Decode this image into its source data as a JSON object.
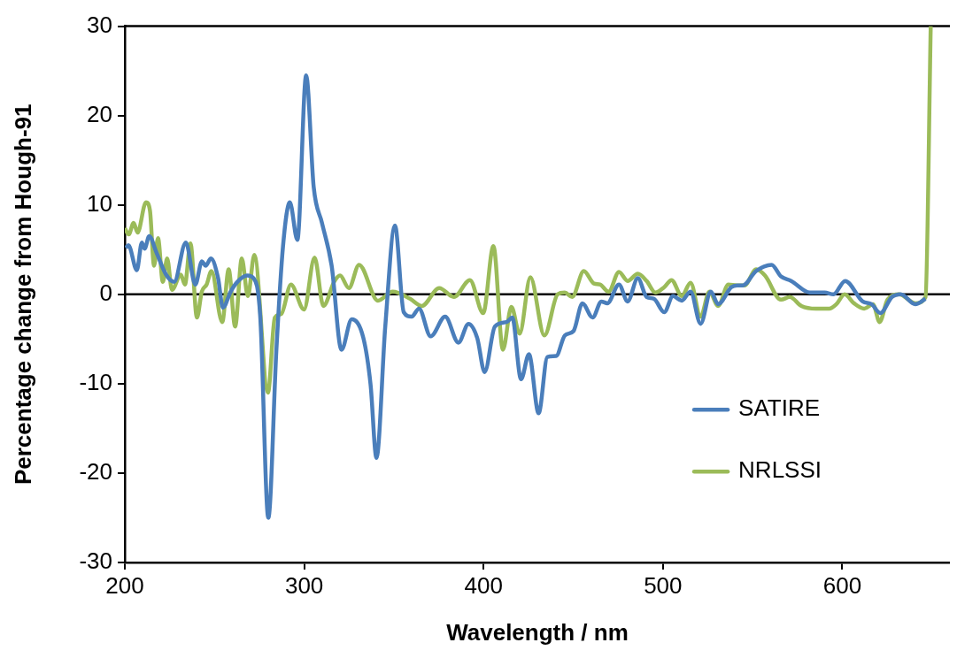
{
  "chart_data": {
    "type": "line",
    "xlabel": "Wavelength / nm",
    "ylabel": "Percentage change from Hough-91",
    "xlim": [
      200,
      660
    ],
    "xticks": [
      200,
      300,
      400,
      500,
      600
    ],
    "ylim": [
      -30,
      30
    ],
    "yticks": [
      -30,
      -20,
      -10,
      0,
      10,
      20,
      30
    ],
    "grid": false,
    "legend": "bottom right",
    "marker": "none",
    "line_style": "solid",
    "ref_lines": [
      {
        "axis": "y",
        "value": 0,
        "color": "#000000"
      }
    ],
    "series": [
      {
        "name": "SATIRE",
        "color": "#4a7ebb",
        "x": [
          200.5,
          202,
          206.7,
          209.5,
          211,
          213.6,
          217.6,
          223,
          227.5,
          234,
          239.3,
          243,
          245,
          248,
          252,
          254.7,
          259,
          262.8,
          268.2,
          271.8,
          275.5,
          280,
          284.5,
          288.2,
          292,
          296.2,
          301.1,
          305.3,
          309.9,
          315.3,
          320.8,
          326.5,
          333,
          337,
          340.3,
          345.2,
          350.6,
          355.5,
          359.9,
          364,
          370.5,
          378.6,
          386,
          391.6,
          396.5,
          400.6,
          406.3,
          412.8,
          416,
          420.9,
          425.3,
          430.7,
          435.6,
          440.5,
          445.3,
          450.2,
          455.1,
          460.8,
          465.7,
          469,
          475.5,
          480.3,
          486,
          490.9,
          495,
          500.7,
          505.6,
          510.5,
          515.4,
          521,
          526.7,
          530.8,
          538.1,
          541.4,
          544.6,
          551.9,
          560.6,
          565.8,
          571.5,
          582,
          590.2,
          595.1,
          601.6,
          611.4,
          616.3,
          621.2,
          627.7,
          632.6,
          640.7,
          646.4
        ],
        "values": [
          5.2,
          5.5,
          2.7,
          5.8,
          5.1,
          6.5,
          4.7,
          2.2,
          1.4,
          5.8,
          1.1,
          3.7,
          3.2,
          4.0,
          1.8,
          -1.5,
          0.3,
          1.4,
          2.1,
          1.8,
          -2.5,
          -25,
          -6.2,
          5.4,
          10.3,
          6.1,
          24.5,
          12.0,
          8.0,
          3.2,
          -6.2,
          -2.8,
          -4.9,
          -10.1,
          -18.3,
          -3.6,
          7.7,
          -2.0,
          -2.5,
          -1.6,
          -4.7,
          -2.5,
          -5.4,
          -3.3,
          -4.9,
          -8.7,
          -3.6,
          -3.1,
          -2.6,
          -9.5,
          -6.7,
          -13.3,
          -7.0,
          -6.9,
          -4.6,
          -4.1,
          -1.0,
          -2.6,
          -0.8,
          -1.0,
          1.1,
          -0.8,
          1.8,
          -0.3,
          -0.5,
          -2.0,
          -0.2,
          -0.7,
          0.3,
          -3.3,
          0.3,
          -1.1,
          0.8,
          1.0,
          1.0,
          2.6,
          3.3,
          2.0,
          1.5,
          0.2,
          0.2,
          0,
          1.5,
          -0.8,
          -1.1,
          -2.1,
          -0.3,
          0,
          -1.1,
          -0.5
        ]
      },
      {
        "name": "NRLSSI",
        "color": "#9bbb59",
        "x": [
          200,
          202.2,
          204.9,
          207.1,
          211.8,
          214,
          216.3,
          218.5,
          221.2,
          223.6,
          226.3,
          231.2,
          233.5,
          236.6,
          240.2,
          242.9,
          245.6,
          248.3,
          254.3,
          257.9,
          261.5,
          265.2,
          268.6,
          272.2,
          279.8,
          283.6,
          287.2,
          292.6,
          299.9,
          305.8,
          310.7,
          316.7,
          320,
          324.9,
          330.6,
          341.1,
          349.3,
          359,
          365.6,
          375.3,
          383.5,
          392.4,
          399.8,
          405.5,
          410.8,
          415.5,
          420.1,
          426.1,
          433.9,
          441.3,
          445.3,
          449.4,
          455.9,
          461.6,
          464.9,
          469.7,
          475.5,
          480.3,
          486,
          490.9,
          495.8,
          500.7,
          504.8,
          510.5,
          515.4,
          521,
          525.9,
          530.8,
          536.5,
          541.4,
          545.5,
          552,
          556.9,
          565.8,
          570.7,
          577.2,
          585.3,
          592.7,
          596.7,
          601.3,
          606.5,
          612.2,
          617.1,
          620.8,
          625.2,
          631.7,
          640.7,
          646.4,
          649.3
        ],
        "values": [
          7.4,
          6.7,
          8.0,
          6.9,
          10.3,
          9.4,
          3.2,
          6.3,
          1.4,
          4.0,
          0.5,
          2.2,
          1.1,
          5.7,
          -2.6,
          0.3,
          1.1,
          2.6,
          -3.1,
          2.8,
          -3.6,
          4.0,
          -0.2,
          4.4,
          -11.0,
          -2.6,
          -2.2,
          1.1,
          -1.7,
          4.1,
          -1.3,
          1.4,
          2.1,
          0.7,
          3.3,
          -0.7,
          0.3,
          -0.5,
          -1.3,
          0.7,
          -0.3,
          1.6,
          -2.1,
          5.4,
          -6.2,
          -1.4,
          -4.4,
          1.9,
          -4.6,
          0,
          0.2,
          -0.3,
          2.6,
          1.2,
          1.1,
          0.3,
          2.5,
          1.5,
          2.3,
          1.5,
          0.2,
          0.8,
          1.6,
          -0.2,
          1.3,
          -2.5,
          0.3,
          -1.3,
          1.1,
          1.0,
          1.0,
          2.8,
          2.1,
          -0.6,
          -0.3,
          -1.3,
          -1.6,
          -1.6,
          -1.1,
          0,
          -1.0,
          -1.6,
          -1.1,
          -3.1,
          -0.6,
          0,
          -1.0,
          -0.3,
          30
        ]
      }
    ]
  }
}
